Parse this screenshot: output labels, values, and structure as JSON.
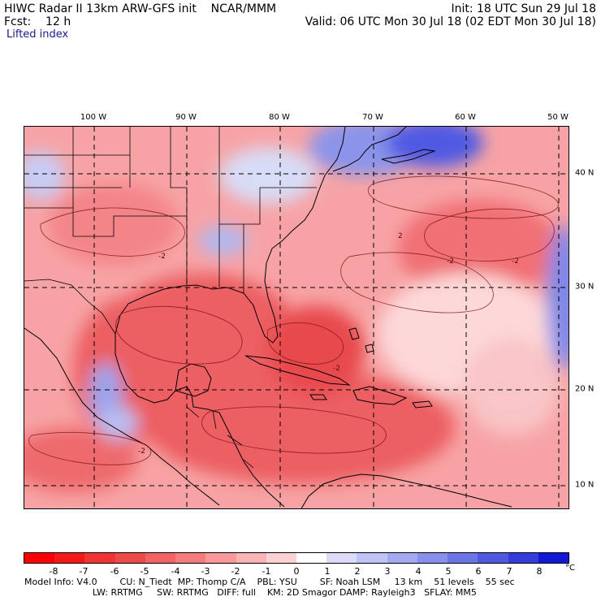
{
  "header": {
    "title_left": "HIWC Radar II 13km ARW-GFS init    NCAR/MMM",
    "forecast": "Fcst:    12 h",
    "field": "Lifted index",
    "init": "Init: 18 UTC Sun 29 Jul 18",
    "valid": "Valid: 06 UTC Mon 30 Jul 18 (02 EDT Mon 30 Jul 18)"
  },
  "map": {
    "longitude_labels": [
      "100 W",
      "90 W",
      "80 W",
      "70 W",
      "60 W",
      "50 W"
    ],
    "latitude_labels": [
      "40 N",
      "30 N",
      "20 N",
      "10 N"
    ],
    "contour_labels": [
      "-2",
      "-2",
      "-2",
      "-2",
      "2",
      "-2"
    ],
    "colors": {
      "land_boundary": "#000000",
      "gridline": "#000000",
      "strong_negative": "#e4454a",
      "moderate_negative": "#f47c80",
      "weak_negative": "#fbb6b6",
      "near_zero": "#fde0e0",
      "weak_positive": "#d8dcf6",
      "moderate_positive": "#9aa4ee",
      "strong_positive": "#3b48e0"
    }
  },
  "colorbar": {
    "ticks": [
      "-8",
      "-7",
      "-6",
      "-5",
      "-4",
      "-3",
      "-2",
      "-1",
      "0",
      "1",
      "2",
      "3",
      "4",
      "5",
      "6",
      "7",
      "8"
    ],
    "unit": "°C",
    "colors": [
      "#ff0000",
      "#f41a1a",
      "#f03434",
      "#ee4a4a",
      "#f26464",
      "#f47c7c",
      "#f89898",
      "#fbb4b4",
      "#fdd2d2",
      "#ffffff",
      "#dcdcf8",
      "#c0c4f4",
      "#a4aaf0",
      "#8890ec",
      "#6c74e6",
      "#5058e2",
      "#343cdc",
      "#1018d4"
    ]
  },
  "footer": {
    "line1": "Model Info: V4.0        CU: N_Tiedt  MP: Thomp C/A    PBL: YSU        SF: Noah LSM     13 km    51 levels    55 sec",
    "line2": "                        LW: RRTMG     SW: RRTMG   DIFF: full    KM: 2D Smagor DAMP: Rayleigh3   SFLAY: MM5"
  }
}
